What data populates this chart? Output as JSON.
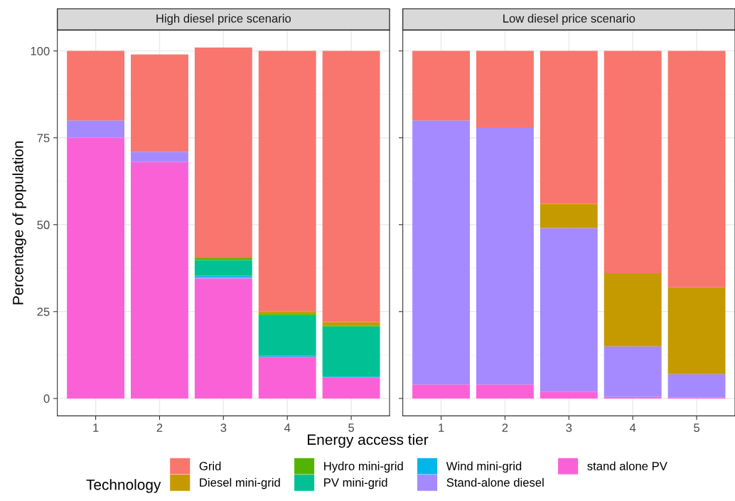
{
  "chart_data": [
    {
      "type": "bar",
      "stacked": true,
      "title": "High diesel price scenario",
      "xlabel": "Energy access tier",
      "ylabel": "Percentage of population",
      "legend_title": "Technology",
      "legend": "bottom",
      "grid": true,
      "categories": [
        "1",
        "2",
        "3",
        "4",
        "5"
      ],
      "ylim": [
        -5,
        106
      ],
      "yticks": [
        0,
        25,
        50,
        75,
        100
      ],
      "series": [
        {
          "name": "stand alone PV",
          "color": "#fb61d7",
          "values": [
            75,
            68,
            34.5,
            12,
            6
          ]
        },
        {
          "name": "Stand-alone diesel",
          "color": "#a58aff",
          "values": [
            5,
            3,
            0.5,
            0,
            0
          ]
        },
        {
          "name": "Wind mini-grid",
          "color": "#00b6eb",
          "values": [
            0,
            0,
            0.3,
            0.3,
            0.3
          ]
        },
        {
          "name": "PV mini-grid",
          "color": "#00c094",
          "values": [
            0,
            0,
            4.5,
            11.7,
            14.4
          ]
        },
        {
          "name": "Hydro mini-grid",
          "color": "#53b400",
          "values": [
            0,
            0,
            0.5,
            0.5,
            0.3
          ]
        },
        {
          "name": "Diesel mini-grid",
          "color": "#c49a00",
          "values": [
            0,
            0,
            0.2,
            0.5,
            1
          ]
        },
        {
          "name": "Grid",
          "color": "#f8766d",
          "values": [
            20,
            28,
            60.5,
            75,
            78
          ]
        }
      ]
    },
    {
      "type": "bar",
      "stacked": true,
      "title": "Low diesel price scenario",
      "grid": true,
      "tick_labels": "x",
      "categories": [
        "1",
        "2",
        "3",
        "4",
        "5"
      ],
      "ylim": [
        -5,
        106
      ],
      "yticks": [
        0,
        25,
        50,
        75,
        100
      ],
      "series": [
        {
          "color": "#fb61d7",
          "values": [
            4,
            4,
            2,
            0.5,
            0.3
          ]
        },
        {
          "color": "#a58aff",
          "values": [
            76,
            74,
            47,
            14.5,
            6.7
          ]
        },
        {
          "color": "#c49a00",
          "values": [
            0,
            0,
            7,
            21,
            25
          ]
        },
        {
          "color": "#f8766d",
          "values": [
            20,
            22,
            44,
            64,
            68
          ]
        }
      ]
    }
  ]
}
